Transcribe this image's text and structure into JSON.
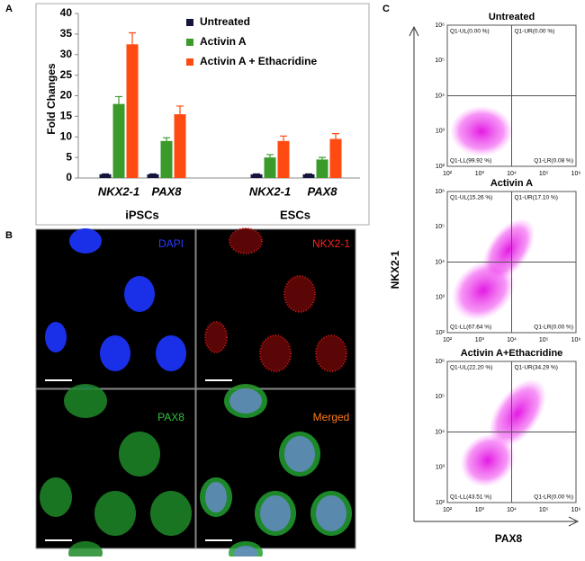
{
  "panel_labels": [
    "A",
    "B",
    "C"
  ],
  "chart_data": {
    "type": "bar",
    "y_label": "Fold Changes",
    "categories": [
      "NKX2-1",
      "PAX8",
      "NKX2-1",
      "PAX8"
    ],
    "groups": [
      "iPSCs",
      "ESCs"
    ],
    "series": [
      {
        "name": "Untreated",
        "color": "#14143c",
        "values": [
          0.9,
          0.9,
          0.9,
          0.9
        ],
        "errors": [
          0.1,
          0.1,
          0.1,
          0.1
        ]
      },
      {
        "name": "Activin A",
        "color": "#3a9a2a",
        "values": [
          18,
          9,
          5,
          4.5
        ],
        "errors": [
          1.8,
          0.8,
          0.7,
          0.5
        ]
      },
      {
        "name": "Activin A + Ethacridine",
        "color": "#ff4a12",
        "values": [
          32.5,
          15.5,
          9,
          9.5
        ],
        "errors": [
          2.8,
          2,
          1.2,
          1.3
        ]
      }
    ],
    "ylim": [
      0,
      40
    ],
    "yticks": [
      0,
      5,
      10,
      15,
      20,
      25,
      30,
      35,
      40
    ]
  },
  "microscopy": {
    "labels": [
      "DAPI",
      "NKX2-1",
      "PAX8",
      "Merged"
    ]
  },
  "flow": {
    "y_label": "NKX2-1",
    "x_label": "PAX8",
    "ticks": [
      "10²",
      "10³",
      "10⁴",
      "10⁵",
      "10⁶"
    ],
    "plots": [
      {
        "title": "Untreated",
        "quadrants": [
          "Q1-UL(0.00 %)",
          "Q1-UR(0.00 %)",
          "Q1-LL(99.92 %)",
          "Q1-LR(0.08 %)"
        ]
      },
      {
        "title": "Activin A",
        "quadrants": [
          "Q1-UL(15.26 %)",
          "Q1-UR(17.10 %)",
          "Q1-LL(67.64 %)",
          "Q1-LR(0.00 %)"
        ]
      },
      {
        "title": "Activin A+Ethacridine",
        "quadrants": [
          "Q1-UL(22.20 %)",
          "Q1-UR(34.29 %)",
          "Q1-LL(43.51 %)",
          "Q1-LR(0.00 %)"
        ]
      }
    ]
  }
}
